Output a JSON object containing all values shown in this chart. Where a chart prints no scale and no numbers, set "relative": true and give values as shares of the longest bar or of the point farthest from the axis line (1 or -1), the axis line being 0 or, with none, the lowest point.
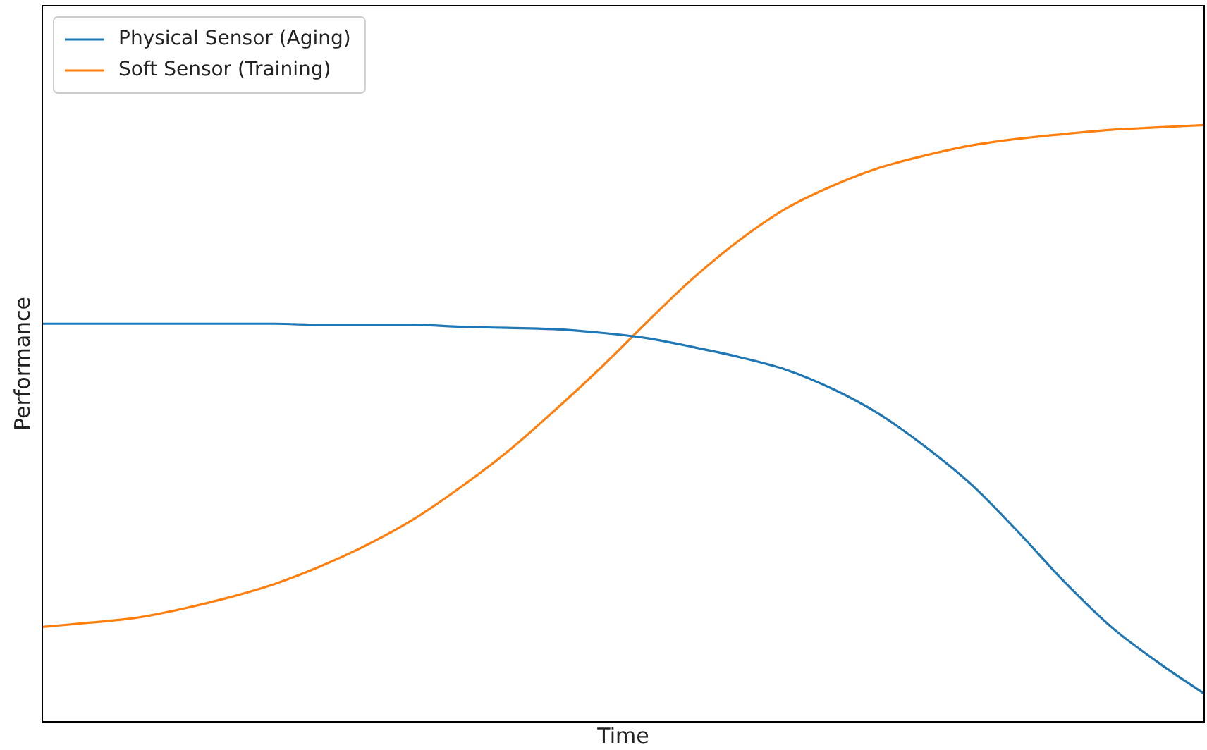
{
  "chart_data": {
    "type": "line",
    "relative": true,
    "xlabel": "Time",
    "ylabel": "Performance",
    "legend": "top left",
    "grid": false,
    "marker": "none",
    "line_style": "solid",
    "categories": [
      null,
      null,
      null,
      null,
      null,
      null,
      null,
      null,
      null,
      null,
      null,
      null,
      null,
      null,
      null,
      null,
      null,
      null,
      null,
      null,
      null,
      null,
      null,
      null,
      null,
      null
    ],
    "series": [
      {
        "name": "Physical Sensor (Aging)",
        "color": "#1f77b4",
        "values": [
          0.667,
          0.667,
          0.667,
          0.667,
          0.667,
          0.667,
          0.665,
          0.665,
          0.665,
          0.662,
          0.66,
          0.658,
          0.652,
          0.643,
          0.628,
          0.611,
          0.59,
          0.558,
          0.516,
          0.461,
          0.397,
          0.318,
          0.234,
          0.159,
          0.1,
          0.047
        ]
      },
      {
        "name": "Soft Sensor (Training)",
        "color": "#ff7f0e",
        "values": [
          0.159,
          0.166,
          0.174,
          0.189,
          0.208,
          0.231,
          0.261,
          0.297,
          0.34,
          0.393,
          0.452,
          0.52,
          0.592,
          0.669,
          0.743,
          0.807,
          0.86,
          0.898,
          0.928,
          0.949,
          0.966,
          0.977,
          0.985,
          0.992,
          0.996,
          1
        ]
      }
    ]
  }
}
